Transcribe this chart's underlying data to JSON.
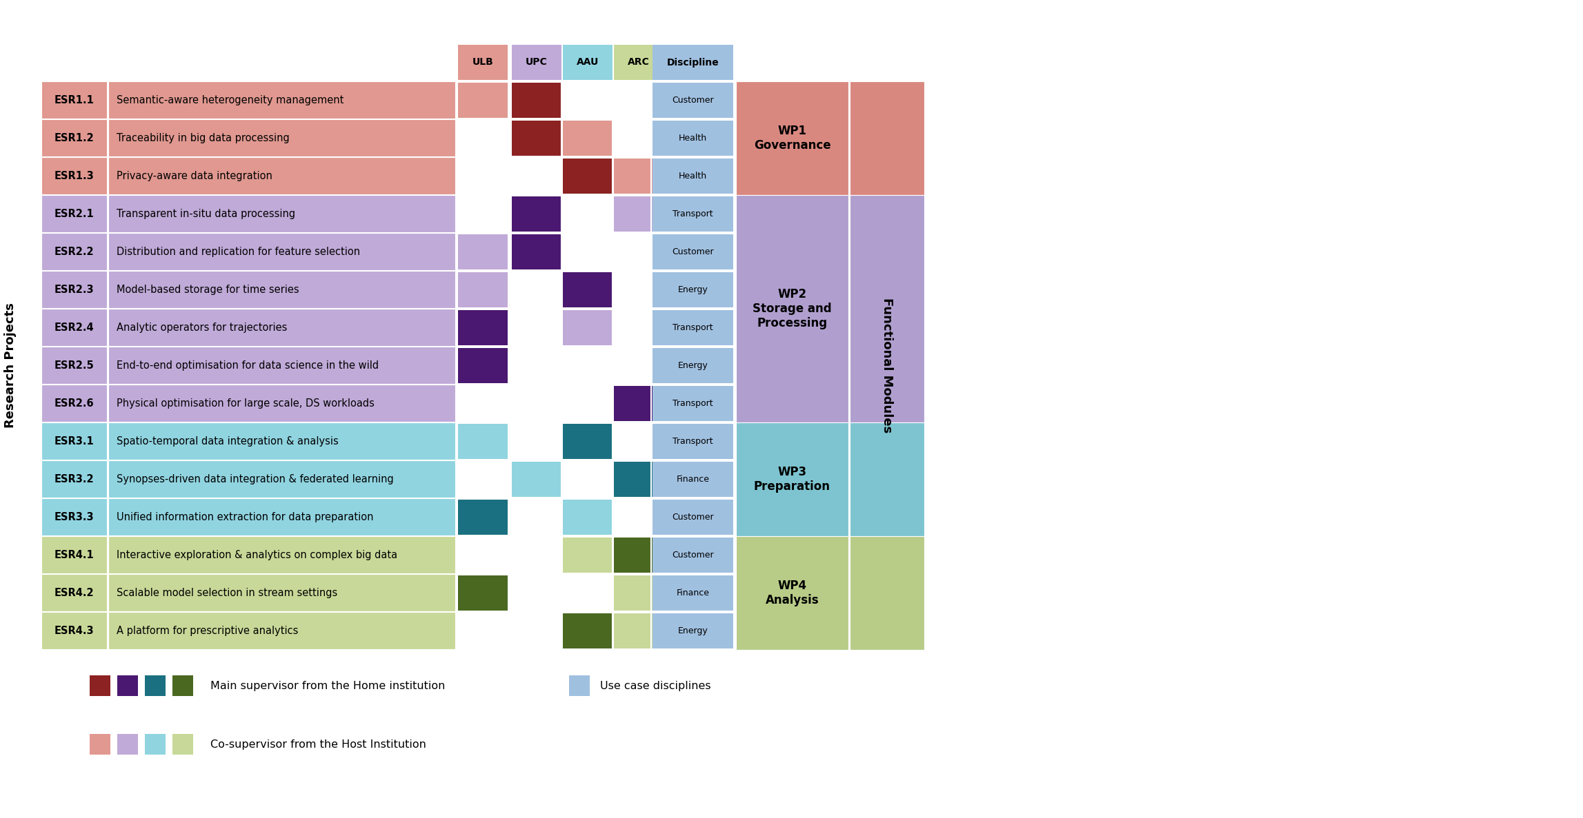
{
  "rows": [
    {
      "id": "ESR1.1",
      "label": "Semantic-aware heterogeneity management",
      "wp": "WP1",
      "ulb": "co",
      "upc": "main",
      "aau": null,
      "arc": null,
      "discipline": "Customer"
    },
    {
      "id": "ESR1.2",
      "label": "Traceability in big data processing",
      "wp": "WP1",
      "ulb": null,
      "upc": "main",
      "aau": "co",
      "arc": null,
      "discipline": "Health"
    },
    {
      "id": "ESR1.3",
      "label": "Privacy-aware data integration",
      "wp": "WP1",
      "ulb": null,
      "upc": null,
      "aau": "main",
      "arc": "co",
      "discipline": "Health"
    },
    {
      "id": "ESR2.1",
      "label": "Transparent in-situ data processing",
      "wp": "WP2",
      "ulb": null,
      "upc": "main",
      "aau": null,
      "arc": "co",
      "discipline": "Transport"
    },
    {
      "id": "ESR2.2",
      "label": "Distribution and replication for feature selection",
      "wp": "WP2",
      "ulb": "co",
      "upc": "main",
      "aau": null,
      "arc": null,
      "discipline": "Customer"
    },
    {
      "id": "ESR2.3",
      "label": "Model-based storage for time series",
      "wp": "WP2",
      "ulb": "co",
      "upc": null,
      "aau": "main",
      "arc": null,
      "discipline": "Energy"
    },
    {
      "id": "ESR2.4",
      "label": "Analytic operators for trajectories",
      "wp": "WP2",
      "ulb": "main",
      "upc": null,
      "aau": "co",
      "arc": null,
      "discipline": "Transport"
    },
    {
      "id": "ESR2.5",
      "label": "End-to-end optimisation for data science in the wild",
      "wp": "WP2",
      "ulb": "main",
      "upc": null,
      "aau": null,
      "arc": null,
      "discipline": "Energy"
    },
    {
      "id": "ESR2.6",
      "label": "Physical optimisation for large scale, DS workloads",
      "wp": "WP2",
      "ulb": null,
      "upc": null,
      "aau": null,
      "arc": "main",
      "discipline": "Transport"
    },
    {
      "id": "ESR3.1",
      "label": "Spatio-temporal data integration & analysis",
      "wp": "WP3",
      "ulb": "co",
      "upc": null,
      "aau": "main",
      "arc": null,
      "discipline": "Transport"
    },
    {
      "id": "ESR3.2",
      "label": "Synopses-driven data integration & federated learning",
      "wp": "WP3",
      "ulb": null,
      "upc": "co",
      "aau": null,
      "arc": "main",
      "discipline": "Finance"
    },
    {
      "id": "ESR3.3",
      "label": "Unified information extraction for data preparation",
      "wp": "WP3",
      "ulb": "main",
      "upc": null,
      "aau": "co",
      "arc": null,
      "discipline": "Customer"
    },
    {
      "id": "ESR4.1",
      "label": "Interactive exploration & analytics on complex big data",
      "wp": "WP4",
      "ulb": null,
      "upc": null,
      "aau": "co",
      "arc": "main",
      "discipline": "Customer"
    },
    {
      "id": "ESR4.2",
      "label": "Scalable model selection in stream settings",
      "wp": "WP4",
      "ulb": "main",
      "upc": null,
      "aau": null,
      "arc": "co",
      "discipline": "Finance"
    },
    {
      "id": "ESR4.3",
      "label": "A platform for prescriptive analytics",
      "wp": "WP4",
      "ulb": null,
      "upc": null,
      "aau": "main",
      "arc": "co",
      "discipline": "Energy"
    }
  ],
  "wp_groups": {
    "WP1": {
      "rows": [
        "ESR1.1",
        "ESR1.2",
        "ESR1.3"
      ],
      "label": "WP1\nGovernance",
      "bg": "#d98880"
    },
    "WP2": {
      "rows": [
        "ESR2.1",
        "ESR2.2",
        "ESR2.3",
        "ESR2.4",
        "ESR2.5",
        "ESR2.6"
      ],
      "label": "WP2\nStorage and\nProcessing",
      "bg": "#b09fce"
    },
    "WP3": {
      "rows": [
        "ESR3.1",
        "ESR3.2",
        "ESR3.3"
      ],
      "label": "WP3\nPreparation",
      "bg": "#7dc4d0"
    },
    "WP4": {
      "rows": [
        "ESR4.1",
        "ESR4.2",
        "ESR4.3"
      ],
      "label": "WP4\nAnalysis",
      "bg": "#b8cc88"
    }
  },
  "row_bg": {
    "WP1": "#e09890",
    "WP2": "#c0aad8",
    "WP3": "#90d4e0",
    "WP4": "#c8d898"
  },
  "main_colors": {
    "WP1": "#8c2222",
    "WP2": "#4a1870",
    "WP3": "#1a7080",
    "WP4": "#4a6820"
  },
  "co_colors": {
    "WP1": "#e09890",
    "WP2": "#c0aad8",
    "WP3": "#90d4e0",
    "WP4": "#c8d898"
  },
  "disc_color": "#a0c0e0",
  "header_colors": {
    "ULB": "#e09890",
    "UPC": "#c0aad8",
    "AAU": "#90d4e0",
    "ARC": "#c8d898",
    "Discipline": "#a0c0e0"
  },
  "legend_main": [
    "#8c2222",
    "#4a1870",
    "#1a7080",
    "#4a6820"
  ],
  "legend_co": [
    "#e09890",
    "#c0aad8",
    "#90d4e0",
    "#c8d898"
  ],
  "legend_disc": "#a0c0e0"
}
